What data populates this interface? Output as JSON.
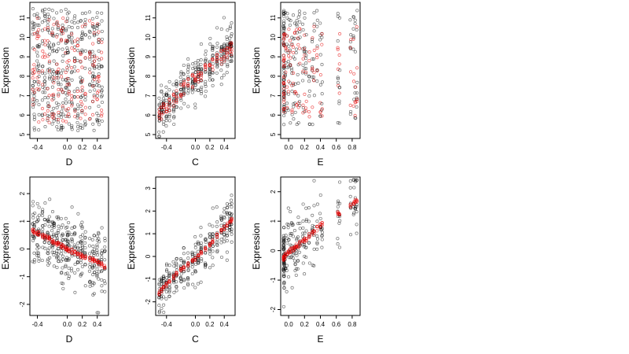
{
  "colors": {
    "primary_points": "#000000",
    "fitted_points": "#e60000"
  },
  "chart_data": [
    {
      "type": "scatter",
      "xlabel": "D",
      "ylabel": "Expression",
      "xlim": [
        -0.5,
        0.55
      ],
      "ylim": [
        4.8,
        11.8
      ],
      "xticks": [
        -0.4,
        0.0,
        0.2,
        0.4
      ],
      "xtick_labels": [
        "-0.4",
        "0.0",
        "0.2",
        "0.4"
      ],
      "yticks": [
        5,
        6,
        7,
        8,
        9,
        10,
        11
      ],
      "ytick_labels": [
        "5",
        "6",
        "7",
        "8",
        "9",
        "10",
        "11"
      ],
      "grid": false,
      "x_levels": [
        -0.46,
        -0.44,
        -0.4,
        -0.38,
        -0.33,
        -0.3,
        -0.26,
        -0.24,
        -0.2,
        -0.18,
        -0.14,
        -0.12,
        -0.08,
        -0.06,
        -0.02,
        0.0,
        0.02,
        0.06,
        0.1,
        0.14,
        0.18,
        0.2,
        0.24,
        0.3,
        0.34,
        0.36,
        0.4,
        0.42,
        0.46
      ],
      "y_range": [
        5.2,
        11.5
      ],
      "fitted_range": [
        5.6,
        11.0
      ],
      "samples_per_level": 14,
      "fitted_per_level": 6,
      "fit": "spread"
    },
    {
      "type": "scatter",
      "xlabel": "C",
      "ylabel": "Expression",
      "xlim": [
        -0.55,
        0.55
      ],
      "ylim": [
        4.8,
        11.8
      ],
      "xticks": [
        -0.4,
        0.0,
        0.2,
        0.4
      ],
      "xtick_labels": [
        "-0.4",
        "0.0",
        "0.2",
        "0.4"
      ],
      "yticks": [
        5,
        6,
        7,
        8,
        9,
        10,
        11
      ],
      "ytick_labels": [
        "5",
        "6",
        "7",
        "8",
        "9",
        "10",
        "11"
      ],
      "grid": false,
      "x_levels": [
        -0.5,
        -0.47,
        -0.44,
        -0.4,
        -0.36,
        -0.3,
        -0.26,
        -0.2,
        -0.16,
        -0.1,
        -0.04,
        0.0,
        0.04,
        0.08,
        0.14,
        0.2,
        0.24,
        0.3,
        0.36,
        0.4,
        0.44,
        0.48,
        0.5
      ],
      "trend_points": [
        [
          -0.5,
          6.0
        ],
        [
          -0.3,
          6.8
        ],
        [
          -0.2,
          7.3
        ],
        [
          0.0,
          7.9
        ],
        [
          0.2,
          8.5
        ],
        [
          0.3,
          8.8
        ],
        [
          0.5,
          9.4
        ]
      ],
      "y_spread": 1.1,
      "fitted_spread": 0.35,
      "samples_per_level": 14,
      "fitted_per_level": 5,
      "fit": "trend"
    },
    {
      "type": "scatter",
      "xlabel": "E",
      "ylabel": "Expression",
      "xlim": [
        -0.1,
        0.9
      ],
      "ylim": [
        4.8,
        11.8
      ],
      "xticks": [
        0.0,
        0.2,
        0.4,
        0.6,
        0.8
      ],
      "xtick_labels": [
        "0.0",
        "0.2",
        "0.4",
        "0.6",
        "0.8"
      ],
      "yticks": [
        5,
        6,
        7,
        8,
        9,
        10,
        11
      ],
      "ytick_labels": [
        "5",
        "6",
        "7",
        "8",
        "9",
        "10",
        "11"
      ],
      "grid": false,
      "x_levels": [
        -0.06,
        -0.04,
        -0.02,
        0.0,
        0.02,
        0.04,
        0.06,
        0.08,
        0.1,
        0.12,
        0.14,
        0.18,
        0.2,
        0.22,
        0.26,
        0.3,
        0.32,
        0.36,
        0.4,
        0.42,
        0.62,
        0.64,
        0.78,
        0.82,
        0.84,
        0.86
      ],
      "dense_x": -0.06,
      "y_range": [
        5.5,
        11.4
      ],
      "fitted_range": [
        5.9,
        10.6
      ],
      "samples_per_level": 7,
      "fitted_per_level": 4,
      "fit": "spread"
    },
    {
      "type": "scatter",
      "xlabel": "D",
      "ylabel": "Expression",
      "xlim": [
        -0.5,
        0.55
      ],
      "ylim": [
        -2.4,
        2.6
      ],
      "xticks": [
        -0.4,
        0.0,
        0.2,
        0.4
      ],
      "xtick_labels": [
        "-0.4",
        "0.0",
        "0.2",
        "0.4"
      ],
      "yticks": [
        -2,
        -1,
        0,
        1,
        2
      ],
      "ytick_labels": [
        "-2",
        "-1",
        "0",
        "1",
        "2"
      ],
      "grid": false,
      "x_levels": [
        -0.46,
        -0.44,
        -0.4,
        -0.38,
        -0.33,
        -0.3,
        -0.26,
        -0.24,
        -0.2,
        -0.18,
        -0.14,
        -0.12,
        -0.08,
        -0.06,
        -0.02,
        0.0,
        0.02,
        0.06,
        0.1,
        0.14,
        0.18,
        0.2,
        0.24,
        0.3,
        0.34,
        0.36,
        0.4,
        0.42,
        0.46,
        0.5
      ],
      "trend_points": [
        [
          -0.46,
          0.65
        ],
        [
          -0.2,
          0.3
        ],
        [
          0.0,
          0.0
        ],
        [
          0.2,
          -0.25
        ],
        [
          0.4,
          -0.45
        ],
        [
          0.5,
          -0.65
        ]
      ],
      "y_spread": 1.1,
      "fitted_spread": 0.08,
      "samples_per_level": 12,
      "fitted_per_level": 5,
      "fit": "trend"
    },
    {
      "type": "scatter",
      "xlabel": "C",
      "ylabel": "Expression",
      "xlim": [
        -0.55,
        0.55
      ],
      "ylim": [
        -2.6,
        3.5
      ],
      "xticks": [
        -0.4,
        0.0,
        0.2,
        0.4
      ],
      "xtick_labels": [
        "-0.4",
        "0.0",
        "0.2",
        "0.4"
      ],
      "yticks": [
        -2,
        -1,
        0,
        1,
        2,
        3
      ],
      "ytick_labels": [
        "-2",
        "-1",
        "0",
        "1",
        "2",
        "3"
      ],
      "grid": false,
      "x_levels": [
        -0.5,
        -0.47,
        -0.44,
        -0.4,
        -0.36,
        -0.3,
        -0.26,
        -0.2,
        -0.16,
        -0.1,
        -0.04,
        0.0,
        0.04,
        0.08,
        0.14,
        0.2,
        0.24,
        0.3,
        0.36,
        0.4,
        0.44,
        0.48,
        0.5
      ],
      "trend_points": [
        [
          -0.5,
          -1.6
        ],
        [
          -0.3,
          -0.9
        ],
        [
          -0.2,
          -0.6
        ],
        [
          0.0,
          -0.1
        ],
        [
          0.2,
          0.5
        ],
        [
          0.3,
          0.9
        ],
        [
          0.5,
          1.6
        ]
      ],
      "y_spread": 0.9,
      "fitted_spread": 0.08,
      "samples_per_level": 13,
      "fitted_per_level": 5,
      "fit": "trend"
    },
    {
      "type": "scatter",
      "xlabel": "E",
      "ylabel": "Expression",
      "xlim": [
        -0.1,
        0.9
      ],
      "ylim": [
        -2.2,
        2.5
      ],
      "xticks": [
        0.0,
        0.2,
        0.4,
        0.6,
        0.8
      ],
      "xtick_labels": [
        "0.0",
        "0.2",
        "0.4",
        "0.6",
        "0.8"
      ],
      "yticks": [
        -2,
        -1,
        0,
        1,
        2
      ],
      "ytick_labels": [
        "-2",
        "-1",
        "0",
        "1",
        "2"
      ],
      "grid": false,
      "x_levels": [
        -0.06,
        -0.04,
        -0.02,
        0.0,
        0.02,
        0.04,
        0.06,
        0.08,
        0.1,
        0.12,
        0.14,
        0.18,
        0.2,
        0.22,
        0.26,
        0.3,
        0.32,
        0.36,
        0.4,
        0.42,
        0.62,
        0.64,
        0.78,
        0.82,
        0.84,
        0.86
      ],
      "dense_x": -0.06,
      "trend_points": [
        [
          -0.06,
          -0.25
        ],
        [
          0.0,
          -0.05
        ],
        [
          0.1,
          0.15
        ],
        [
          0.2,
          0.35
        ],
        [
          0.4,
          0.85
        ],
        [
          0.64,
          1.3
        ],
        [
          0.86,
          1.7
        ]
      ],
      "y_spread": 1.0,
      "fitted_spread": 0.08,
      "samples_per_level": 7,
      "fitted_per_level": 4,
      "fit": "trend"
    }
  ]
}
